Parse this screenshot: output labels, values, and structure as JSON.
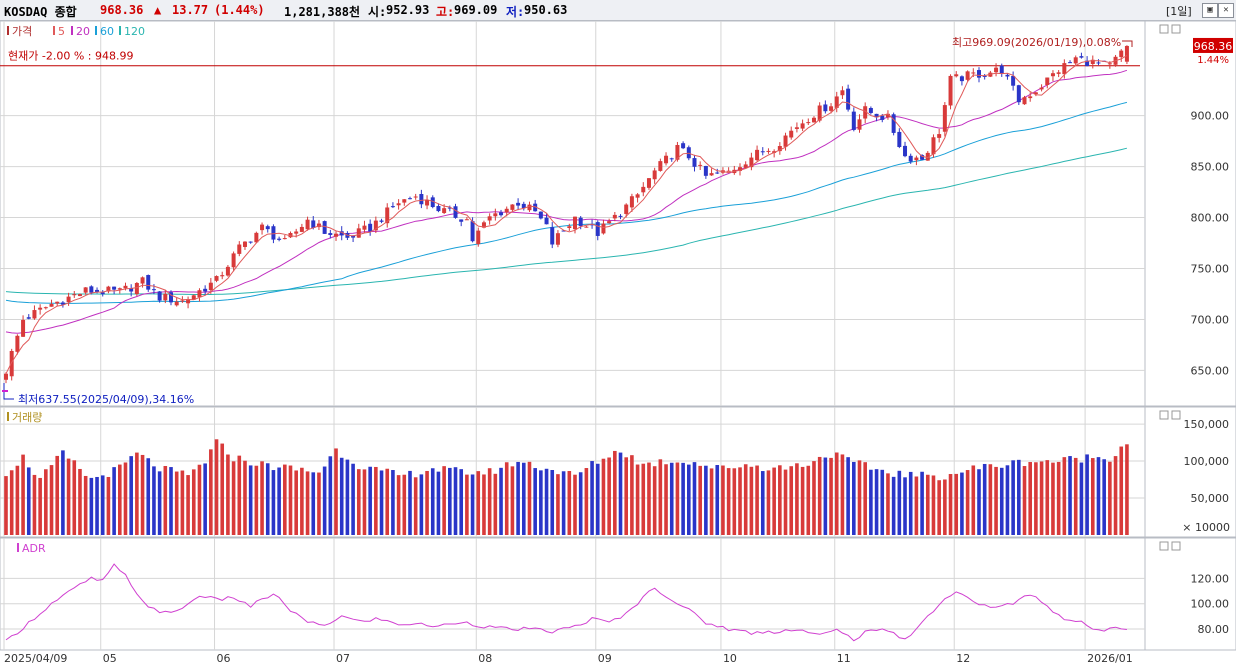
{
  "header": {
    "symbol": "KOSDAQ 종합",
    "price": "968.36",
    "change_arrow": "▲",
    "change": "13.77",
    "change_pct": "(1.44%)",
    "volume": "1,281,388천",
    "open_label": "시:",
    "open": "952.93",
    "high_label": "고:",
    "high": "969.09",
    "low_label": "저:",
    "low": "950.63",
    "period": "[1일]"
  },
  "colors": {
    "up": "#d83a3a",
    "down": "#2a35c8",
    "ma5": "#e05a5a",
    "ma20": "#c030c0",
    "ma60": "#1aa0d8",
    "ma120": "#2ab5b0",
    "adr": "#d040d0",
    "grid": "#d6d6d6",
    "refline": "#c00000"
  },
  "chart_data": [
    {
      "type": "candlestick",
      "legend": [
        "가격",
        "5",
        "20",
        "60",
        "120"
      ],
      "ref_line_label": "현재가 -2.00 % : 948.99",
      "ref_line_value": 948.99,
      "current_price_label": "968.36",
      "current_change_label": "1.44%",
      "high_annotation": "최고969.09(2026/01/19),0.08%",
      "low_annotation": "최저637.55(2025/04/09),34.16%",
      "ylim": [
        620,
        985
      ],
      "yticks": [
        "650.00",
        "700.00",
        "750.00",
        "800.00",
        "850.00",
        "900.00"
      ],
      "xlabels": [
        "2025/04/09",
        "05",
        "06",
        "07",
        "08",
        "09",
        "10",
        "11",
        "12",
        "2026/01"
      ],
      "xlabel_idx": [
        0,
        17,
        37,
        58,
        83,
        104,
        126,
        146,
        167,
        190
      ],
      "n_bars": 198,
      "close_anchors": [
        [
          0,
          650
        ],
        [
          3,
          700
        ],
        [
          8,
          715
        ],
        [
          14,
          728
        ],
        [
          20,
          727
        ],
        [
          24,
          737
        ],
        [
          27,
          722
        ],
        [
          31,
          718
        ],
        [
          37,
          738
        ],
        [
          41,
          770
        ],
        [
          45,
          790
        ],
        [
          49,
          775
        ],
        [
          53,
          798
        ],
        [
          56,
          786
        ],
        [
          60,
          780
        ],
        [
          64,
          790
        ],
        [
          69,
          815
        ],
        [
          72,
          821
        ],
        [
          77,
          806
        ],
        [
          81,
          798
        ],
        [
          82,
          778
        ],
        [
          85,
          800
        ],
        [
          90,
          815
        ],
        [
          93,
          805
        ],
        [
          95,
          790
        ],
        [
          96,
          775
        ],
        [
          100,
          800
        ],
        [
          104,
          785
        ],
        [
          107,
          800
        ],
        [
          111,
          822
        ],
        [
          114,
          845
        ],
        [
          118,
          868
        ],
        [
          120,
          860
        ],
        [
          123,
          840
        ],
        [
          127,
          845
        ],
        [
          131,
          860
        ],
        [
          135,
          870
        ],
        [
          139,
          890
        ],
        [
          142,
          902
        ],
        [
          145,
          912
        ],
        [
          147,
          925
        ],
        [
          149,
          890
        ],
        [
          151,
          905
        ],
        [
          155,
          897
        ],
        [
          158,
          860
        ],
        [
          161,
          858
        ],
        [
          164,
          885
        ],
        [
          166,
          935
        ],
        [
          170,
          940
        ],
        [
          175,
          945
        ],
        [
          178,
          915
        ],
        [
          181,
          925
        ],
        [
          185,
          945
        ],
        [
          188,
          956
        ],
        [
          191,
          952
        ],
        [
          194,
          948
        ],
        [
          197,
          968.36
        ]
      ],
      "ma20_start": 690,
      "ma60_start": 720,
      "ma120_start": 728,
      "ma60_end": 913,
      "ma120_end": 868
    },
    {
      "type": "bar",
      "legend": [
        "거래량"
      ],
      "ylim": [
        0,
        165000
      ],
      "yticks": [
        "50,000",
        "100,000",
        "150,000"
      ],
      "unit_label": "× 10000",
      "level_anchors": [
        [
          0,
          85
        ],
        [
          3,
          105
        ],
        [
          6,
          75
        ],
        [
          10,
          110
        ],
        [
          15,
          75
        ],
        [
          20,
          90
        ],
        [
          23,
          110
        ],
        [
          27,
          90
        ],
        [
          32,
          80
        ],
        [
          35,
          100
        ],
        [
          37,
          125
        ],
        [
          40,
          105
        ],
        [
          45,
          95
        ],
        [
          50,
          90
        ],
        [
          55,
          85
        ],
        [
          58,
          115
        ],
        [
          62,
          95
        ],
        [
          66,
          85
        ],
        [
          70,
          80
        ],
        [
          75,
          90
        ],
        [
          80,
          85
        ],
        [
          85,
          85
        ],
        [
          90,
          100
        ],
        [
          95,
          90
        ],
        [
          100,
          80
        ],
        [
          104,
          100
        ],
        [
          108,
          115
        ],
        [
          112,
          95
        ],
        [
          116,
          100
        ],
        [
          120,
          100
        ],
        [
          125,
          90
        ],
        [
          130,
          95
        ],
        [
          135,
          90
        ],
        [
          140,
          95
        ],
        [
          145,
          110
        ],
        [
          150,
          95
        ],
        [
          155,
          85
        ],
        [
          160,
          80
        ],
        [
          165,
          80
        ],
        [
          170,
          90
        ],
        [
          175,
          95
        ],
        [
          180,
          100
        ],
        [
          185,
          100
        ],
        [
          190,
          105
        ],
        [
          194,
          105
        ],
        [
          197,
          125
        ]
      ]
    },
    {
      "type": "line",
      "legend": [
        "ADR"
      ],
      "ylim": [
        65,
        148
      ],
      "yticks": [
        "80.00",
        "100.00",
        "120.00"
      ],
      "anchors": [
        [
          0,
          70
        ],
        [
          4,
          85
        ],
        [
          8,
          100
        ],
        [
          12,
          112
        ],
        [
          15,
          120
        ],
        [
          17,
          118
        ],
        [
          19,
          130
        ],
        [
          21,
          122
        ],
        [
          24,
          102
        ],
        [
          27,
          92
        ],
        [
          31,
          96
        ],
        [
          34,
          107
        ],
        [
          37,
          103
        ],
        [
          40,
          105
        ],
        [
          43,
          98
        ],
        [
          47,
          108
        ],
        [
          50,
          95
        ],
        [
          53,
          85
        ],
        [
          56,
          83
        ],
        [
          59,
          90
        ],
        [
          62,
          86
        ],
        [
          65,
          88
        ],
        [
          69,
          84
        ],
        [
          72,
          84
        ],
        [
          76,
          82
        ],
        [
          80,
          86
        ],
        [
          84,
          82
        ],
        [
          88,
          80
        ],
        [
          92,
          80
        ],
        [
          96,
          78
        ],
        [
          100,
          82
        ],
        [
          103,
          88
        ],
        [
          106,
          85
        ],
        [
          109,
          92
        ],
        [
          112,
          105
        ],
        [
          114,
          113
        ],
        [
          117,
          103
        ],
        [
          120,
          95
        ],
        [
          123,
          85
        ],
        [
          127,
          80
        ],
        [
          131,
          77
        ],
        [
          135,
          78
        ],
        [
          139,
          80
        ],
        [
          143,
          75
        ],
        [
          146,
          79
        ],
        [
          149,
          72
        ],
        [
          152,
          80
        ],
        [
          155,
          78
        ],
        [
          158,
          72
        ],
        [
          161,
          85
        ],
        [
          164,
          100
        ],
        [
          167,
          110
        ],
        [
          170,
          101
        ],
        [
          174,
          97
        ],
        [
          177,
          100
        ],
        [
          180,
          108
        ],
        [
          183,
          98
        ],
        [
          186,
          88
        ],
        [
          189,
          85
        ],
        [
          192,
          78
        ],
        [
          195,
          82
        ],
        [
          197,
          81
        ]
      ]
    }
  ]
}
